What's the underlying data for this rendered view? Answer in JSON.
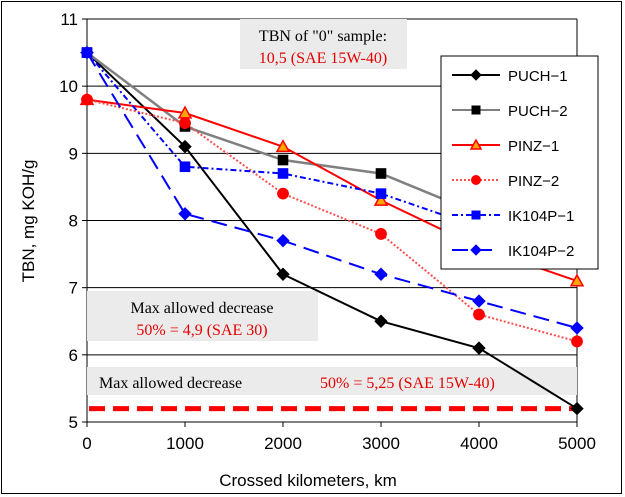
{
  "chart_data": {
    "type": "line",
    "title": "",
    "xlabel": "Crossed kilometers, km",
    "ylabel": "TBN, mg KOH/g",
    "xlim": [
      0,
      5000
    ],
    "ylim": [
      5,
      11
    ],
    "x_ticks": [
      "0",
      "1000",
      "2000",
      "3000",
      "4000",
      "5000"
    ],
    "y_ticks": [
      "5",
      "6",
      "7",
      "8",
      "9",
      "10",
      "11"
    ],
    "grid": "horizontal",
    "legend_position": "top-right",
    "series": [
      {
        "name": "PUCH−1",
        "color": "#000000",
        "marker": "diamond",
        "dash": "solid",
        "x": [
          0,
          1000,
          2000,
          3000,
          4000,
          5000
        ],
        "y": [
          10.5,
          9.1,
          7.2,
          6.5,
          6.1,
          5.2
        ]
      },
      {
        "name": "PUCH−2",
        "color": "#808080",
        "marker": "square",
        "markerColor": "#000000",
        "dash": "solid",
        "x": [
          0,
          1000,
          2000,
          3000,
          4000,
          5000
        ],
        "y": [
          10.5,
          9.4,
          8.9,
          8.7,
          8.1,
          7.6
        ]
      },
      {
        "name": "PINZ−1",
        "color": "#ff0000",
        "marker": "triangle",
        "markerColor": "#ffa500",
        "dash": "solid",
        "x": [
          0,
          1000,
          2000,
          3000,
          4000,
          5000
        ],
        "y": [
          9.8,
          9.6,
          9.1,
          8.3,
          7.6,
          7.1
        ]
      },
      {
        "name": "PINZ−2",
        "color": "#ff4d4d",
        "marker": "circle",
        "markerColor": "#ff0000",
        "dash": "dotted",
        "x": [
          0,
          1000,
          2000,
          3000,
          4000,
          5000
        ],
        "y": [
          9.8,
          9.45,
          8.4,
          7.8,
          6.6,
          6.2
        ]
      },
      {
        "name": "IK104P−1",
        "color": "#0000ff",
        "marker": "square",
        "markerColor": "#0000ff",
        "dash": "dashdot",
        "x": [
          0,
          1000,
          2000,
          3000,
          4000,
          5000
        ],
        "y": [
          10.5,
          8.8,
          8.7,
          8.4,
          7.9,
          7.35
        ]
      },
      {
        "name": "IK104P−2",
        "color": "#0000ff",
        "marker": "diamond",
        "markerColor": "#0000ff",
        "dash": "longdash",
        "x": [
          0,
          1000,
          2000,
          3000,
          4000,
          5000
        ],
        "y": [
          10.5,
          8.1,
          7.7,
          7.2,
          6.8,
          6.4
        ]
      }
    ],
    "reference_line": {
      "y": 5.2,
      "color": "#ff0000"
    },
    "annotations": {
      "tbn_zero_label": "TBN of \"0\" sample:",
      "tbn_zero_value": "10,5 (SAE 15W-40)",
      "max_decrease_label": "Max allowed decrease",
      "max_decrease_sae30": "50% = 4,9 (SAE 30)",
      "max_decrease_15w40_label": "Max allowed decrease",
      "max_decrease_15w40_value": "50% = 5,25 (SAE 15W-40)"
    }
  }
}
